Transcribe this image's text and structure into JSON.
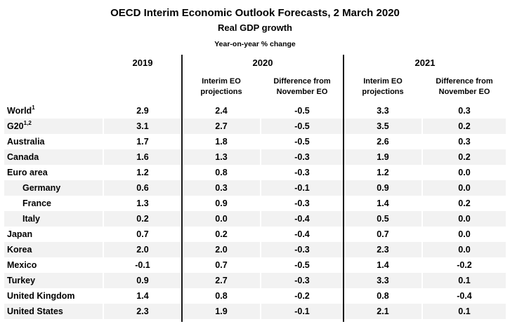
{
  "header": {
    "title": "OECD Interim Economic Outlook Forecasts, 2 March 2020",
    "subtitle": "Real GDP growth",
    "unit_note": "Year-on-year % change"
  },
  "table": {
    "year_headers": [
      "2019",
      "2020",
      "2021"
    ],
    "sub_headers": {
      "interim_line1": "Interim EO",
      "interim_line2": "projections",
      "diff_line1": "Difference from",
      "diff_line2": "November EO"
    },
    "rows": [
      {
        "label": "World",
        "sup": "1",
        "indent": false,
        "values": [
          "2.9",
          "2.4",
          "-0.5",
          "3.3",
          "0.3"
        ]
      },
      {
        "label": "G20",
        "sup": "1,2",
        "indent": false,
        "values": [
          "3.1",
          "2.7",
          "-0.5",
          "3.5",
          "0.2"
        ]
      },
      {
        "label": "Australia",
        "sup": "",
        "indent": false,
        "values": [
          "1.7",
          "1.8",
          "-0.5",
          "2.6",
          "0.3"
        ]
      },
      {
        "label": "Canada",
        "sup": "",
        "indent": false,
        "values": [
          "1.6",
          "1.3",
          "-0.3",
          "1.9",
          "0.2"
        ]
      },
      {
        "label": "Euro area",
        "sup": "",
        "indent": false,
        "values": [
          "1.2",
          "0.8",
          "-0.3",
          "1.2",
          "0.0"
        ]
      },
      {
        "label": "Germany",
        "sup": "",
        "indent": true,
        "values": [
          "0.6",
          "0.3",
          "-0.1",
          "0.9",
          "0.0"
        ]
      },
      {
        "label": "France",
        "sup": "",
        "indent": true,
        "values": [
          "1.3",
          "0.9",
          "-0.3",
          "1.4",
          "0.2"
        ]
      },
      {
        "label": "Italy",
        "sup": "",
        "indent": true,
        "values": [
          "0.2",
          "0.0",
          "-0.4",
          "0.5",
          "0.0"
        ]
      },
      {
        "label": "Japan",
        "sup": "",
        "indent": false,
        "values": [
          "0.7",
          "0.2",
          "-0.4",
          "0.7",
          "0.0"
        ]
      },
      {
        "label": "Korea",
        "sup": "",
        "indent": false,
        "values": [
          "2.0",
          "2.0",
          "-0.3",
          "2.3",
          "0.0"
        ]
      },
      {
        "label": "Mexico",
        "sup": "",
        "indent": false,
        "values": [
          "-0.1",
          "0.7",
          "-0.5",
          "1.4",
          "-0.2"
        ]
      },
      {
        "label": "Turkey",
        "sup": "",
        "indent": false,
        "values": [
          "0.9",
          "2.7",
          "-0.3",
          "3.3",
          "0.1"
        ]
      },
      {
        "label": "United Kingdom",
        "sup": "",
        "indent": false,
        "values": [
          "1.4",
          "0.8",
          "-0.2",
          "0.8",
          "-0.4"
        ]
      },
      {
        "label": "United States",
        "sup": "",
        "indent": false,
        "values": [
          "2.3",
          "1.9",
          "-0.1",
          "2.1",
          "0.1"
        ]
      }
    ]
  },
  "colors": {
    "row_alt_background": "#f2f2f2",
    "divider": "#1a1a1a",
    "text": "#000000"
  }
}
